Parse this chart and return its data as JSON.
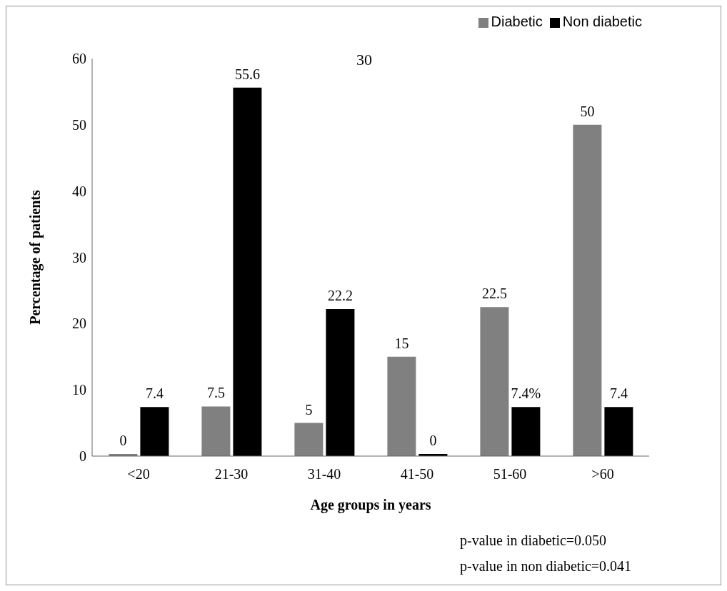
{
  "chart_data": {
    "type": "bar",
    "xlabel": "Age groups in years",
    "ylabel": "Percentage of patients",
    "categories": [
      "<20",
      "21-30",
      "31-40",
      "41-50",
      "51-60",
      ">60"
    ],
    "series": [
      {
        "name": "Diabetic",
        "color": "#808080",
        "values": [
          0,
          7.5,
          5,
          15,
          22.5,
          50
        ],
        "value_labels": [
          "0",
          "7.5",
          "5",
          "15",
          "22.5",
          "50"
        ]
      },
      {
        "name": "Non diabetic",
        "color": "#000000",
        "values": [
          7.4,
          55.6,
          22.2,
          0,
          7.4,
          7.4
        ],
        "value_labels": [
          "7.4",
          "55.6",
          "22.2",
          "0",
          "7.4%",
          "7.4"
        ]
      }
    ],
    "ylim": [
      0,
      60
    ],
    "yticks": [
      0,
      10,
      20,
      30,
      40,
      50,
      60
    ],
    "grid": false,
    "legend": "top right",
    "annotations": [
      "30",
      "p-value in diabetic=0.050",
      "p-value in non diabetic=0.041"
    ]
  }
}
